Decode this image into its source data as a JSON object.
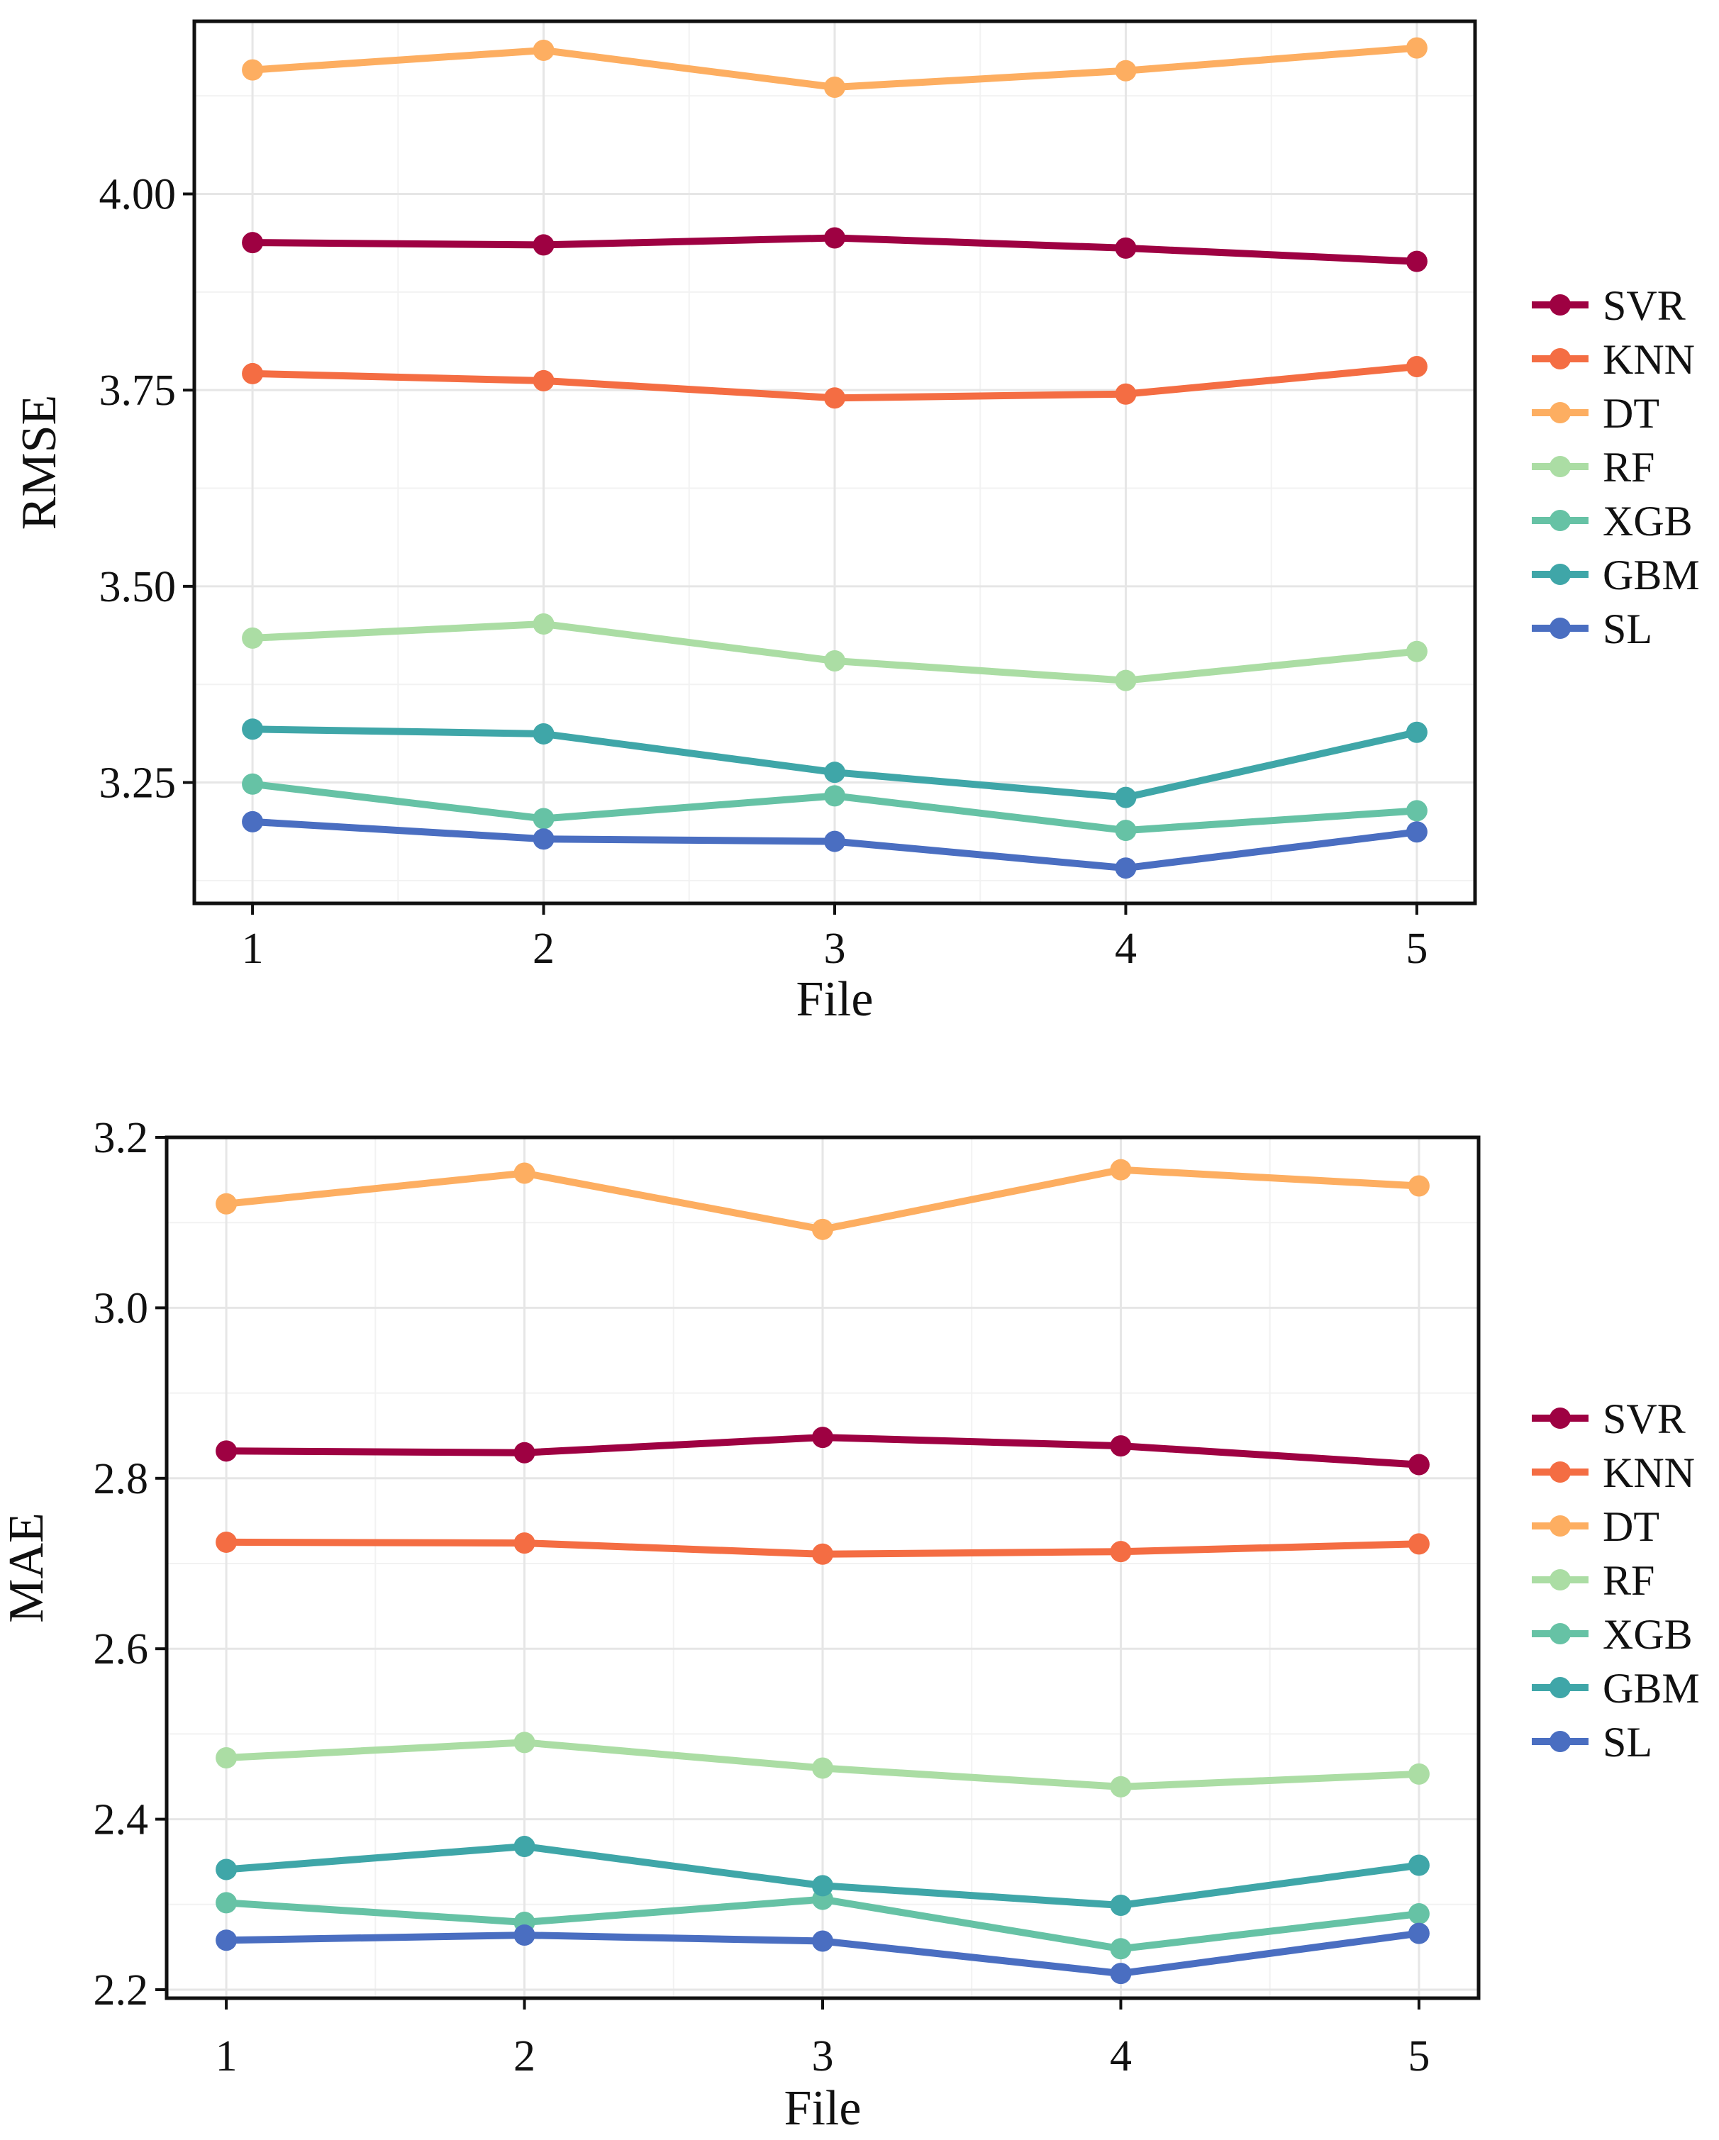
{
  "chart_data": [
    {
      "type": "line",
      "title": "",
      "xlabel": "File",
      "ylabel": "RMSE",
      "x": [
        1,
        2,
        3,
        4,
        5
      ],
      "x_tick_labels": [
        "1",
        "2",
        "3",
        "4",
        "5"
      ],
      "xlim": [
        0.8,
        5.2
      ],
      "ylim": [
        3.096,
        4.22
      ],
      "y_ticks": [
        3.25,
        3.5,
        3.75,
        4.0
      ],
      "y_tick_labels": [
        "3.25",
        "3.50",
        "3.75",
        "4.00"
      ],
      "grid": true,
      "legend_position": "right",
      "series": [
        {
          "name": "SVR",
          "color": "#9e0142",
          "values": [
            3.938,
            3.935,
            3.944,
            3.931,
            3.914
          ]
        },
        {
          "name": "KNN",
          "color": "#f46d43",
          "values": [
            3.771,
            3.762,
            3.74,
            3.745,
            3.78
          ]
        },
        {
          "name": "DT",
          "color": "#fdae61",
          "values": [
            4.158,
            4.183,
            4.136,
            4.157,
            4.186
          ]
        },
        {
          "name": "RF",
          "color": "#abdda4",
          "values": [
            3.434,
            3.452,
            3.405,
            3.38,
            3.417
          ]
        },
        {
          "name": "XGB",
          "color": "#66c2a5",
          "values": [
            3.248,
            3.204,
            3.233,
            3.189,
            3.214
          ]
        },
        {
          "name": "GBM",
          "color": "#3fa6a8",
          "values": [
            3.318,
            3.312,
            3.263,
            3.231,
            3.314
          ]
        },
        {
          "name": "SL",
          "color": "#4a6ec1",
          "values": [
            3.2,
            3.178,
            3.175,
            3.141,
            3.187
          ]
        }
      ]
    },
    {
      "type": "line",
      "title": "",
      "xlabel": "File",
      "ylabel": "MAE",
      "x": [
        1,
        2,
        3,
        4,
        5
      ],
      "x_tick_labels": [
        "1",
        "2",
        "3",
        "4",
        "5"
      ],
      "xlim": [
        0.8,
        5.2
      ],
      "ylim": [
        2.19,
        3.2
      ],
      "y_ticks": [
        2.2,
        2.4,
        2.6,
        2.8,
        3.0,
        3.2
      ],
      "y_tick_labels": [
        "2.2",
        "2.4",
        "2.6",
        "2.8",
        "3.0",
        "3.2"
      ],
      "grid": true,
      "legend_position": "right",
      "series": [
        {
          "name": "SVR",
          "color": "#9e0142",
          "values": [
            2.832,
            2.83,
            2.848,
            2.838,
            2.816
          ]
        },
        {
          "name": "KNN",
          "color": "#f46d43",
          "values": [
            2.725,
            2.724,
            2.711,
            2.714,
            2.723
          ]
        },
        {
          "name": "DT",
          "color": "#fdae61",
          "values": [
            3.122,
            3.158,
            3.092,
            3.162,
            3.143
          ]
        },
        {
          "name": "RF",
          "color": "#abdda4",
          "values": [
            2.472,
            2.49,
            2.46,
            2.438,
            2.453
          ]
        },
        {
          "name": "XGB",
          "color": "#66c2a5",
          "values": [
            2.302,
            2.279,
            2.306,
            2.248,
            2.289
          ]
        },
        {
          "name": "GBM",
          "color": "#3fa6a8",
          "values": [
            2.341,
            2.368,
            2.322,
            2.299,
            2.346
          ]
        },
        {
          "name": "SL",
          "color": "#4a6ec1",
          "values": [
            2.258,
            2.264,
            2.257,
            2.219,
            2.266
          ]
        }
      ]
    }
  ]
}
